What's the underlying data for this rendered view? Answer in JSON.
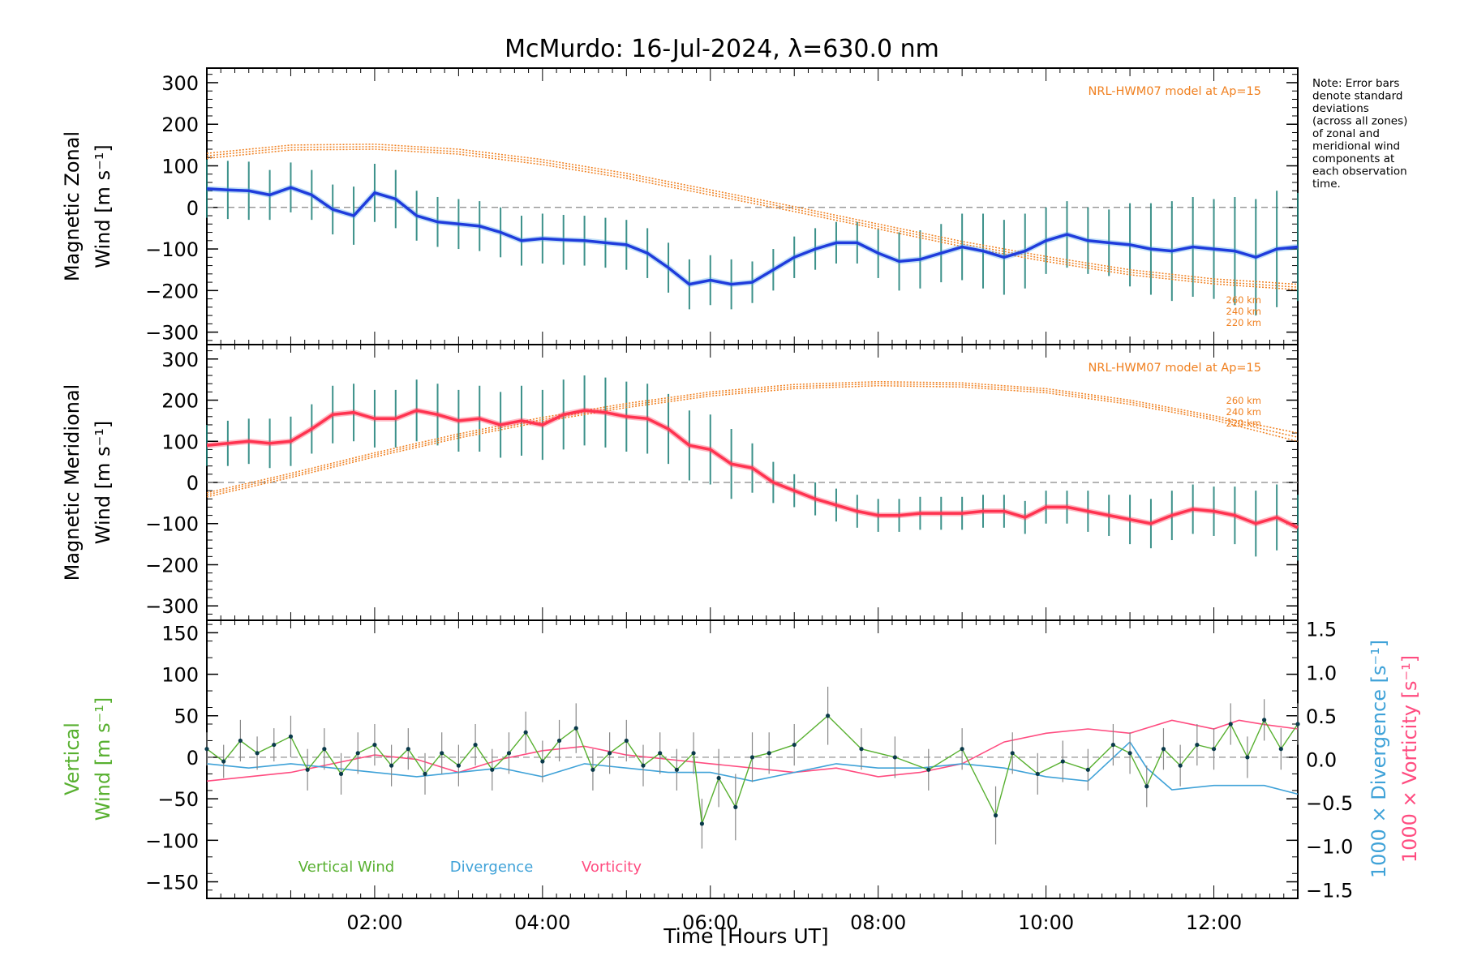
{
  "title": "McMurdo: 16-Jul-2024, λ=630.0 nm",
  "note_lines": [
    "Note: Error bars",
    "denote standard",
    "deviations",
    "(across all zones)",
    "of zonal and",
    "meridional wind",
    "components at",
    "each observation",
    "time."
  ],
  "xlabel": "Time [Hours UT]",
  "x_tick_labels": [
    "02:00",
    "04:00",
    "06:00",
    "08:00",
    "10:00",
    "12:00"
  ],
  "colors": {
    "zonal": "#1f3cdc",
    "zonal_sites": "#4aa3e8",
    "meridional": "#ff3350",
    "model": "#f08020",
    "scatter": "#a9a2dc",
    "vertical": "#58b030",
    "divergence": "#3fa2d8",
    "vorticity": "#ff4c80",
    "error_bar": "#1b7e76"
  },
  "chart_data": [
    {
      "type": "line",
      "panel": "zonal",
      "ylabel_line1": "Magnetic Zonal",
      "ylabel_line2": "Wind [m s⁻¹]",
      "ylim": [
        -330,
        335
      ],
      "xlim_hours": [
        0.0,
        13.0
      ],
      "y_ticks": [
        -300,
        -200,
        -100,
        0,
        100,
        200,
        300
      ],
      "model_label": "NRL-HWM07 model at Ap=15",
      "model_altitudes": [
        "260 km",
        "240 km",
        "220 km"
      ],
      "model_series": {
        "x": [
          0,
          1,
          2,
          3,
          4,
          5,
          6,
          7,
          8,
          9,
          10,
          11,
          12,
          13
        ],
        "260 km": [
          130,
          150,
          152,
          140,
          115,
          82,
          42,
          2,
          -40,
          -82,
          -118,
          -150,
          -172,
          -185
        ],
        "240 km": [
          124,
          144,
          146,
          134,
          109,
          76,
          36,
          -4,
          -46,
          -88,
          -124,
          -156,
          -178,
          -192
        ],
        "220 km": [
          118,
          138,
          140,
          128,
          103,
          70,
          30,
          -10,
          -52,
          -94,
          -130,
          -162,
          -184,
          -198
        ]
      },
      "series": [
        {
          "name": "Zonal wind",
          "x": [
            0.0,
            0.25,
            0.5,
            0.75,
            1.0,
            1.25,
            1.5,
            1.75,
            2.0,
            2.25,
            2.5,
            2.75,
            3.0,
            3.25,
            3.5,
            3.75,
            4.0,
            4.25,
            4.5,
            4.75,
            5.0,
            5.25,
            5.5,
            5.75,
            6.0,
            6.25,
            6.5,
            6.75,
            7.0,
            7.25,
            7.5,
            7.75,
            8.0,
            8.25,
            8.5,
            8.75,
            9.0,
            9.25,
            9.5,
            9.75,
            10.0,
            10.25,
            10.5,
            10.75,
            11.0,
            11.25,
            11.5,
            11.75,
            12.0,
            12.25,
            12.5,
            12.75,
            13.0
          ],
          "values": [
            45,
            42,
            40,
            30,
            48,
            30,
            -5,
            -20,
            35,
            20,
            -20,
            -35,
            -40,
            -45,
            -60,
            -80,
            -75,
            -78,
            -80,
            -85,
            -90,
            -110,
            -145,
            -185,
            -175,
            -185,
            -180,
            -150,
            -120,
            -100,
            -85,
            -85,
            -110,
            -130,
            -125,
            -110,
            -95,
            -105,
            -120,
            -105,
            -80,
            -65,
            -80,
            -85,
            -90,
            -100,
            -105,
            -95,
            -100,
            -105,
            -120,
            -100,
            -95
          ],
          "error": [
            70,
            70,
            70,
            60,
            60,
            60,
            60,
            70,
            70,
            70,
            60,
            60,
            60,
            60,
            60,
            60,
            60,
            60,
            60,
            60,
            60,
            60,
            60,
            60,
            60,
            60,
            50,
            50,
            50,
            50,
            50,
            50,
            60,
            70,
            70,
            70,
            80,
            90,
            90,
            90,
            80,
            80,
            80,
            80,
            100,
            110,
            120,
            120,
            120,
            130,
            140,
            140,
            130
          ]
        }
      ]
    },
    {
      "type": "line",
      "panel": "meridional",
      "ylabel_line1": "Magnetic Meridional",
      "ylabel_line2": "Wind [m s⁻¹]",
      "ylim": [
        -335,
        335
      ],
      "xlim_hours": [
        0.0,
        13.0
      ],
      "y_ticks": [
        -300,
        -200,
        -100,
        0,
        100,
        200,
        300
      ],
      "model_label": "NRL-HWM07 model at Ap=15",
      "model_altitudes": [
        "260 km",
        "240 km",
        "220 km"
      ],
      "model_series": {
        "x": [
          0,
          1,
          2,
          3,
          4,
          5,
          6,
          7,
          8,
          9,
          10,
          11,
          12,
          13
        ],
        "260 km": [
          -25,
          22,
          72,
          118,
          158,
          192,
          220,
          238,
          245,
          242,
          228,
          200,
          162,
          120
        ],
        "240 km": [
          -30,
          17,
          67,
          113,
          153,
          187,
          215,
          233,
          240,
          237,
          223,
          195,
          157,
          110
        ],
        "220 km": [
          -35,
          12,
          62,
          108,
          148,
          182,
          210,
          228,
          235,
          232,
          218,
          190,
          152,
          100
        ]
      },
      "series": [
        {
          "name": "Meridional wind",
          "x": [
            0.0,
            0.25,
            0.5,
            0.75,
            1.0,
            1.25,
            1.5,
            1.75,
            2.0,
            2.25,
            2.5,
            2.75,
            3.0,
            3.25,
            3.5,
            3.75,
            4.0,
            4.25,
            4.5,
            4.75,
            5.0,
            5.25,
            5.5,
            5.75,
            6.0,
            6.25,
            6.5,
            6.75,
            7.0,
            7.25,
            7.5,
            7.75,
            8.0,
            8.25,
            8.5,
            8.75,
            9.0,
            9.25,
            9.5,
            9.75,
            10.0,
            10.25,
            10.5,
            10.75,
            11.0,
            11.25,
            11.5,
            11.75,
            12.0,
            12.25,
            12.5,
            12.75,
            13.0
          ],
          "values": [
            90,
            95,
            100,
            95,
            100,
            130,
            165,
            170,
            155,
            155,
            175,
            165,
            150,
            155,
            140,
            150,
            140,
            165,
            175,
            170,
            160,
            155,
            130,
            90,
            80,
            45,
            35,
            0,
            -20,
            -40,
            -55,
            -70,
            -80,
            -80,
            -75,
            -75,
            -75,
            -70,
            -70,
            -85,
            -60,
            -60,
            -70,
            -80,
            -90,
            -100,
            -80,
            -65,
            -70,
            -80,
            -100,
            -85,
            -110
          ],
          "error": [
            50,
            55,
            55,
            60,
            60,
            60,
            70,
            70,
            70,
            70,
            75,
            75,
            75,
            80,
            80,
            85,
            85,
            85,
            85,
            85,
            85,
            85,
            85,
            85,
            85,
            85,
            60,
            50,
            40,
            40,
            40,
            40,
            40,
            40,
            40,
            40,
            40,
            40,
            40,
            40,
            40,
            40,
            50,
            50,
            60,
            60,
            60,
            60,
            60,
            70,
            80,
            80,
            80
          ]
        }
      ]
    },
    {
      "type": "line",
      "panel": "vertical",
      "ylabel_left_line1": "Vertical",
      "ylabel_left_line2": "Wind [m s⁻¹]",
      "ylabel_right_divergence": "1000 × Divergence [s⁻¹]",
      "ylabel_right_vorticity": "1000 × Vorticity [s⁻¹]",
      "ylim": [
        -170,
        165
      ],
      "ylim_right": [
        -1.6,
        1.6
      ],
      "xlim_hours": [
        0.0,
        13.0
      ],
      "y_ticks": [
        -150,
        -100,
        -50,
        0,
        50,
        100,
        150
      ],
      "y_ticks_right": [
        "-1.5",
        "-1.0",
        "-0.5",
        "0.0",
        "0.5",
        "1.0",
        "1.5"
      ],
      "legend": [
        "Vertical Wind",
        "Divergence",
        "Vorticity"
      ],
      "series": [
        {
          "name": "Vertical Wind",
          "x": [
            0.0,
            0.2,
            0.4,
            0.6,
            0.8,
            1.0,
            1.2,
            1.4,
            1.6,
            1.8,
            2.0,
            2.2,
            2.4,
            2.6,
            2.8,
            3.0,
            3.2,
            3.4,
            3.6,
            3.8,
            4.0,
            4.2,
            4.4,
            4.6,
            4.8,
            5.0,
            5.2,
            5.4,
            5.6,
            5.8,
            5.9,
            6.1,
            6.3,
            6.5,
            6.7,
            7.0,
            7.4,
            7.8,
            8.2,
            8.6,
            9.0,
            9.4,
            9.6,
            9.9,
            10.2,
            10.5,
            10.8,
            11.0,
            11.2,
            11.4,
            11.6,
            11.8,
            12.0,
            12.2,
            12.4,
            12.6,
            12.8,
            13.0
          ],
          "values": [
            10,
            -5,
            20,
            5,
            15,
            25,
            -15,
            10,
            -20,
            5,
            15,
            -10,
            10,
            -20,
            5,
            -10,
            15,
            -15,
            5,
            30,
            -5,
            20,
            35,
            -15,
            5,
            20,
            -10,
            5,
            -15,
            5,
            -80,
            -25,
            -60,
            0,
            5,
            15,
            50,
            10,
            0,
            -15,
            10,
            -70,
            5,
            -20,
            -5,
            -15,
            15,
            5,
            -35,
            10,
            -10,
            15,
            10,
            40,
            0,
            45,
            10,
            40
          ],
          "error": [
            20,
            20,
            25,
            20,
            20,
            25,
            25,
            25,
            25,
            25,
            25,
            25,
            25,
            25,
            25,
            25,
            25,
            25,
            25,
            25,
            25,
            25,
            30,
            25,
            25,
            25,
            25,
            25,
            25,
            25,
            30,
            35,
            40,
            30,
            25,
            25,
            35,
            25,
            25,
            25,
            25,
            35,
            25,
            25,
            25,
            25,
            25,
            25,
            25,
            25,
            25,
            25,
            25,
            25,
            25,
            25,
            25,
            25
          ]
        },
        {
          "name": "Divergence",
          "x": [
            0.0,
            0.5,
            1.0,
            1.5,
            2.0,
            2.5,
            3.0,
            3.5,
            4.0,
            4.5,
            5.0,
            5.5,
            6.0,
            6.5,
            7.0,
            7.5,
            8.0,
            8.5,
            9.0,
            9.5,
            10.0,
            10.5,
            11.0,
            11.2,
            11.5,
            12.0,
            12.3,
            12.6,
            13.0
          ],
          "values": [
            -0.05,
            -0.1,
            -0.05,
            -0.1,
            -0.15,
            -0.2,
            -0.15,
            -0.1,
            -0.2,
            -0.05,
            -0.1,
            -0.15,
            -0.15,
            -0.25,
            -0.15,
            -0.05,
            -0.1,
            -0.1,
            -0.05,
            -0.1,
            -0.2,
            -0.25,
            0.2,
            -0.1,
            -0.35,
            -0.3,
            -0.3,
            -0.3,
            -0.4
          ]
        },
        {
          "name": "Vorticity",
          "x": [
            0.0,
            0.5,
            1.0,
            1.5,
            2.0,
            2.5,
            3.0,
            3.5,
            4.0,
            4.5,
            5.0,
            5.5,
            6.0,
            6.5,
            7.0,
            7.5,
            8.0,
            8.5,
            9.0,
            9.5,
            10.0,
            10.5,
            11.0,
            11.5,
            12.0,
            12.3,
            12.6,
            13.0
          ],
          "values": [
            -0.25,
            -0.2,
            -0.15,
            -0.05,
            0.05,
            0.0,
            -0.15,
            0.0,
            0.1,
            0.15,
            0.05,
            0.0,
            -0.05,
            -0.1,
            -0.15,
            -0.1,
            -0.2,
            -0.15,
            -0.05,
            0.2,
            0.3,
            0.35,
            0.3,
            0.45,
            0.35,
            0.45,
            0.4,
            0.35
          ]
        }
      ]
    }
  ]
}
